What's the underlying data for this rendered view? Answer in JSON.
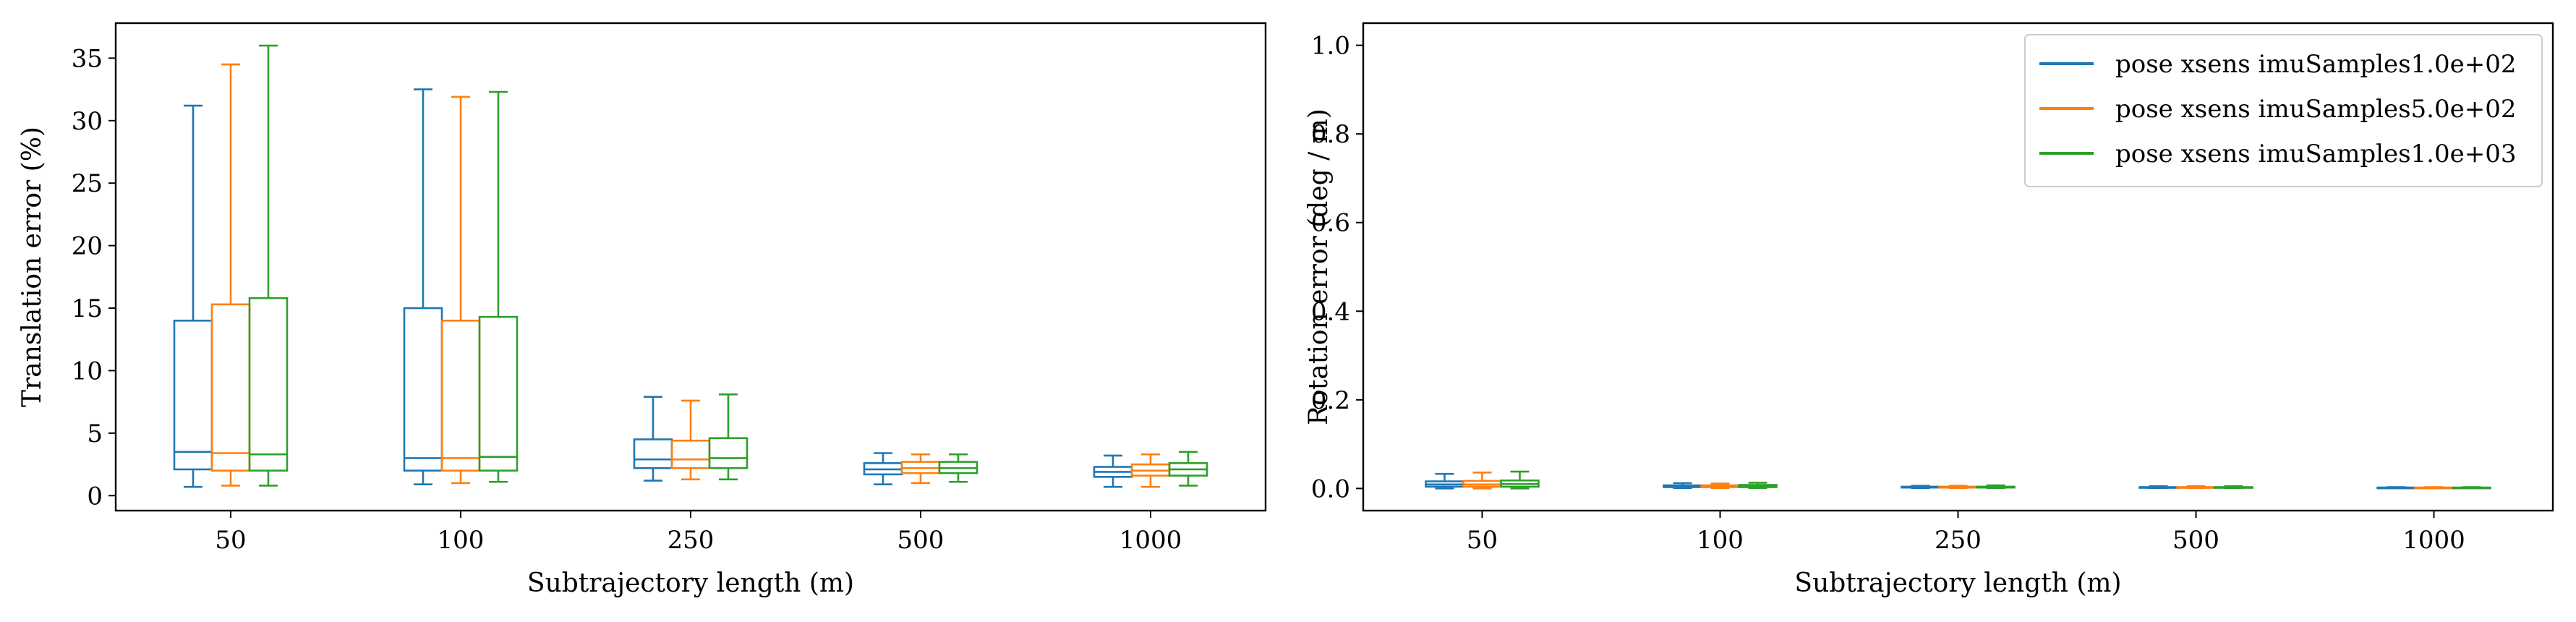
{
  "chart_data": [
    {
      "type": "box",
      "xlabel": "Subtrajectory length (m)",
      "ylabel": "Translation error (%)",
      "categories": [
        "50",
        "100",
        "250",
        "500",
        "1000"
      ],
      "ylim": [
        -1.2,
        37.8
      ],
      "yticks": [
        0,
        5,
        10,
        15,
        20,
        25,
        30,
        35
      ],
      "grid": false,
      "series": [
        {
          "name": "pose xsens imuSamples1.0e+02",
          "color": "#1f77b4",
          "boxes": [
            {
              "whislo": 0.7,
              "q1": 2.1,
              "med": 3.5,
              "q3": 14.0,
              "whishi": 31.2
            },
            {
              "whislo": 0.9,
              "q1": 2.0,
              "med": 3.0,
              "q3": 15.0,
              "whishi": 32.5
            },
            {
              "whislo": 1.2,
              "q1": 2.2,
              "med": 2.9,
              "q3": 4.5,
              "whishi": 7.9
            },
            {
              "whislo": 0.9,
              "q1": 1.7,
              "med": 2.1,
              "q3": 2.6,
              "whishi": 3.4
            },
            {
              "whislo": 0.7,
              "q1": 1.5,
              "med": 1.9,
              "q3": 2.3,
              "whishi": 3.2
            }
          ]
        },
        {
          "name": "pose xsens imuSamples5.0e+02",
          "color": "#ff7f0e",
          "boxes": [
            {
              "whislo": 0.8,
              "q1": 2.0,
              "med": 3.4,
              "q3": 15.3,
              "whishi": 34.5
            },
            {
              "whislo": 1.0,
              "q1": 2.0,
              "med": 3.0,
              "q3": 14.0,
              "whishi": 31.9
            },
            {
              "whislo": 1.3,
              "q1": 2.2,
              "med": 2.9,
              "q3": 4.4,
              "whishi": 7.6
            },
            {
              "whislo": 1.0,
              "q1": 1.8,
              "med": 2.2,
              "q3": 2.7,
              "whishi": 3.3
            },
            {
              "whislo": 0.7,
              "q1": 1.6,
              "med": 2.0,
              "q3": 2.5,
              "whishi": 3.3
            }
          ]
        },
        {
          "name": "pose xsens imuSamples1.0e+03",
          "color": "#2ca02c",
          "boxes": [
            {
              "whislo": 0.8,
              "q1": 2.0,
              "med": 3.3,
              "q3": 15.8,
              "whishi": 36.0
            },
            {
              "whislo": 1.1,
              "q1": 2.0,
              "med": 3.1,
              "q3": 14.3,
              "whishi": 32.3
            },
            {
              "whislo": 1.3,
              "q1": 2.2,
              "med": 3.0,
              "q3": 4.6,
              "whishi": 8.1
            },
            {
              "whislo": 1.1,
              "q1": 1.8,
              "med": 2.2,
              "q3": 2.7,
              "whishi": 3.3
            },
            {
              "whislo": 0.8,
              "q1": 1.6,
              "med": 2.1,
              "q3": 2.6,
              "whishi": 3.5
            }
          ]
        }
      ]
    },
    {
      "type": "box",
      "xlabel": "Subtrajectory length (m)",
      "ylabel": "Rotation error (deg / m)",
      "categories": [
        "50",
        "100",
        "250",
        "500",
        "1000"
      ],
      "ylim": [
        -0.05,
        1.05
      ],
      "yticks": [
        0.0,
        0.2,
        0.4,
        0.6,
        0.8,
        1.0
      ],
      "yticklabels": [
        "0.0",
        "0.2",
        "0.4",
        "0.6",
        "0.8",
        "1.0"
      ],
      "grid": false,
      "legend": "top-right",
      "series": [
        {
          "name": "pose xsens imuSamples1.0e+02",
          "color": "#1f77b4",
          "boxes": [
            {
              "whislo": 0.0,
              "q1": 0.004,
              "med": 0.009,
              "q3": 0.016,
              "whishi": 0.033
            },
            {
              "whislo": 0.001,
              "q1": 0.003,
              "med": 0.005,
              "q3": 0.007,
              "whishi": 0.012
            },
            {
              "whislo": 0.001,
              "q1": 0.002,
              "med": 0.003,
              "q3": 0.004,
              "whishi": 0.006
            },
            {
              "whislo": 0.001,
              "q1": 0.002,
              "med": 0.002,
              "q3": 0.003,
              "whishi": 0.005
            },
            {
              "whislo": 0.001,
              "q1": 0.001,
              "med": 0.002,
              "q3": 0.002,
              "whishi": 0.003
            }
          ]
        },
        {
          "name": "pose xsens imuSamples5.0e+02",
          "color": "#ff7f0e",
          "boxes": [
            {
              "whislo": 0.0,
              "q1": 0.004,
              "med": 0.009,
              "q3": 0.017,
              "whishi": 0.036
            },
            {
              "whislo": 0.001,
              "q1": 0.003,
              "med": 0.005,
              "q3": 0.007,
              "whishi": 0.011
            },
            {
              "whislo": 0.001,
              "q1": 0.002,
              "med": 0.003,
              "q3": 0.004,
              "whishi": 0.006
            },
            {
              "whislo": 0.001,
              "q1": 0.002,
              "med": 0.002,
              "q3": 0.003,
              "whishi": 0.005
            },
            {
              "whislo": 0.001,
              "q1": 0.001,
              "med": 0.002,
              "q3": 0.002,
              "whishi": 0.003
            }
          ]
        },
        {
          "name": "pose xsens imuSamples1.0e+03",
          "color": "#2ca02c",
          "boxes": [
            {
              "whislo": 0.0,
              "q1": 0.004,
              "med": 0.01,
              "q3": 0.018,
              "whishi": 0.038
            },
            {
              "whislo": 0.001,
              "q1": 0.003,
              "med": 0.005,
              "q3": 0.008,
              "whishi": 0.013
            },
            {
              "whislo": 0.001,
              "q1": 0.002,
              "med": 0.003,
              "q3": 0.004,
              "whishi": 0.007
            },
            {
              "whislo": 0.001,
              "q1": 0.002,
              "med": 0.002,
              "q3": 0.003,
              "whishi": 0.005
            },
            {
              "whislo": 0.001,
              "q1": 0.001,
              "med": 0.002,
              "q3": 0.002,
              "whishi": 0.003
            }
          ]
        }
      ]
    }
  ]
}
